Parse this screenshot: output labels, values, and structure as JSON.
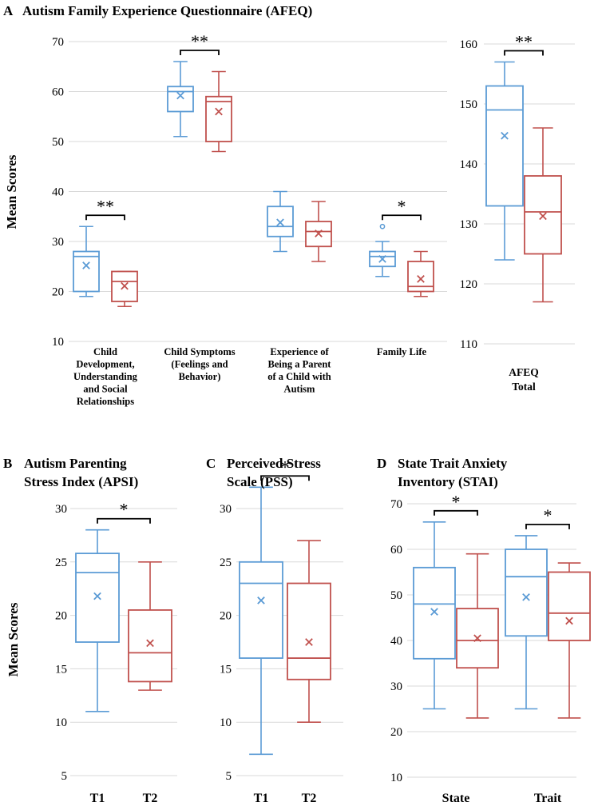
{
  "colors": {
    "t1": "#5b9bd5",
    "t2": "#c0504d",
    "grid": "#d9d9d9"
  },
  "chart_data": [
    {
      "id": "A",
      "type": "box",
      "panel_letter": "A",
      "title": "Autism Family Experience Questionnaire (AFEQ)",
      "ylabel": "Mean Scores",
      "yticks": [
        10,
        20,
        30,
        40,
        50,
        60,
        70
      ],
      "ylim": [
        10,
        70
      ],
      "groups": [
        {
          "label": [
            "Child",
            "Development,",
            "Understanding",
            "and Social",
            "Relationships"
          ],
          "sig": "**",
          "boxes": [
            {
              "series": "T1",
              "min": 19,
              "q1": 20,
              "median": 27,
              "q3": 28,
              "max": 33,
              "mean": 25.2,
              "outliers": []
            },
            {
              "series": "T2",
              "min": 17,
              "q1": 18,
              "median": 22,
              "q3": 24,
              "max": 24,
              "mean": 21.1,
              "outliers": []
            }
          ]
        },
        {
          "label": [
            "Child Symptoms",
            "(Feelings and",
            "Behavior)"
          ],
          "sig": "**",
          "boxes": [
            {
              "series": "T1",
              "min": 51,
              "q1": 56,
              "median": 60,
              "q3": 61,
              "max": 66,
              "mean": 59.2,
              "outliers": []
            },
            {
              "series": "T2",
              "min": 48,
              "q1": 50,
              "median": 58,
              "q3": 59,
              "max": 64,
              "mean": 56,
              "outliers": []
            }
          ]
        },
        {
          "label": [
            "Experience of",
            "Being a Parent",
            "of a Child with",
            "Autism"
          ],
          "sig": "",
          "boxes": [
            {
              "series": "T1",
              "min": 28,
              "q1": 31,
              "median": 33,
              "q3": 37,
              "max": 40,
              "mean": 33.8,
              "outliers": []
            },
            {
              "series": "T2",
              "min": 26,
              "q1": 29,
              "median": 32,
              "q3": 34,
              "max": 38,
              "mean": 31.6,
              "outliers": []
            }
          ]
        },
        {
          "label": [
            "Family Life"
          ],
          "sig": "*",
          "boxes": [
            {
              "series": "T1",
              "min": 23,
              "q1": 25,
              "median": 27,
              "q3": 28,
              "max": 30,
              "mean": 26.5,
              "outliers": [
                33
              ]
            },
            {
              "series": "T2",
              "min": 19,
              "q1": 20,
              "median": 21,
              "q3": 26,
              "max": 28,
              "mean": 22.5,
              "outliers": []
            }
          ]
        }
      ]
    },
    {
      "id": "A-total",
      "type": "box",
      "yticks": [
        110,
        120,
        130,
        140,
        150,
        160
      ],
      "ylim": [
        110,
        160
      ],
      "groups": [
        {
          "label": [
            "AFEQ",
            "Total"
          ],
          "sig": "**",
          "boxes": [
            {
              "series": "T1",
              "min": 124,
              "q1": 133,
              "median": 149,
              "q3": 153,
              "max": 157,
              "mean": 144.7,
              "outliers": []
            },
            {
              "series": "T2",
              "min": 117,
              "q1": 125,
              "median": 132,
              "q3": 138,
              "max": 146,
              "mean": 131.3,
              "outliers": []
            }
          ]
        }
      ]
    },
    {
      "id": "B",
      "type": "box",
      "panel_letter": "B",
      "title": [
        "Autism Parenting",
        "Stress Index (APSI)"
      ],
      "ylabel": "Mean Scores",
      "yticks": [
        5,
        10,
        15,
        20,
        25,
        30
      ],
      "ylim": [
        5,
        30
      ],
      "sig": "*",
      "categories": [
        "T1",
        "T2"
      ],
      "boxes": [
        {
          "series": "T1",
          "min": 11,
          "q1": 17.5,
          "median": 24,
          "q3": 25.8,
          "max": 28,
          "mean": 21.8,
          "outliers": []
        },
        {
          "series": "T2",
          "min": 13,
          "q1": 13.8,
          "median": 16.5,
          "q3": 20.5,
          "max": 25,
          "mean": 17.4,
          "outliers": []
        }
      ]
    },
    {
      "id": "C",
      "type": "box",
      "panel_letter": "C",
      "title": [
        "Perceived Stress",
        "Scale (PSS)"
      ],
      "yticks": [
        5,
        10,
        15,
        20,
        25,
        30
      ],
      "ylim": [
        5,
        30
      ],
      "sig": "*",
      "categories": [
        "T1",
        "T2"
      ],
      "boxes": [
        {
          "series": "T1",
          "min": 7,
          "q1": 16,
          "median": 23,
          "q3": 25,
          "max": 32,
          "mean": 21.4,
          "outliers": []
        },
        {
          "series": "T2",
          "min": 10,
          "q1": 14,
          "median": 16,
          "q3": 23,
          "max": 27,
          "mean": 17.5,
          "outliers": []
        }
      ]
    },
    {
      "id": "D",
      "type": "box",
      "panel_letter": "D",
      "title": [
        "State Trait Anxiety",
        "Inventory (STAI)"
      ],
      "yticks": [
        10,
        20,
        30,
        40,
        50,
        60,
        70
      ],
      "ylim": [
        10,
        70
      ],
      "categories": [
        "State",
        "Trait"
      ],
      "groups": [
        {
          "label": [
            "State"
          ],
          "sig": "*",
          "boxes": [
            {
              "series": "T1",
              "min": 25,
              "q1": 36,
              "median": 48,
              "q3": 56,
              "max": 66,
              "mean": 46.3,
              "outliers": []
            },
            {
              "series": "T2",
              "min": 23,
              "q1": 34,
              "median": 40,
              "q3": 47,
              "max": 59,
              "mean": 40.5,
              "outliers": []
            }
          ]
        },
        {
          "label": [
            "Trait"
          ],
          "sig": "*",
          "boxes": [
            {
              "series": "T1",
              "min": 25,
              "q1": 41,
              "median": 54,
              "q3": 60,
              "max": 63,
              "mean": 49.5,
              "outliers": []
            },
            {
              "series": "T2",
              "min": 23,
              "q1": 40,
              "median": 46,
              "q3": 55,
              "max": 57,
              "mean": 44.3,
              "outliers": []
            }
          ]
        }
      ]
    }
  ]
}
